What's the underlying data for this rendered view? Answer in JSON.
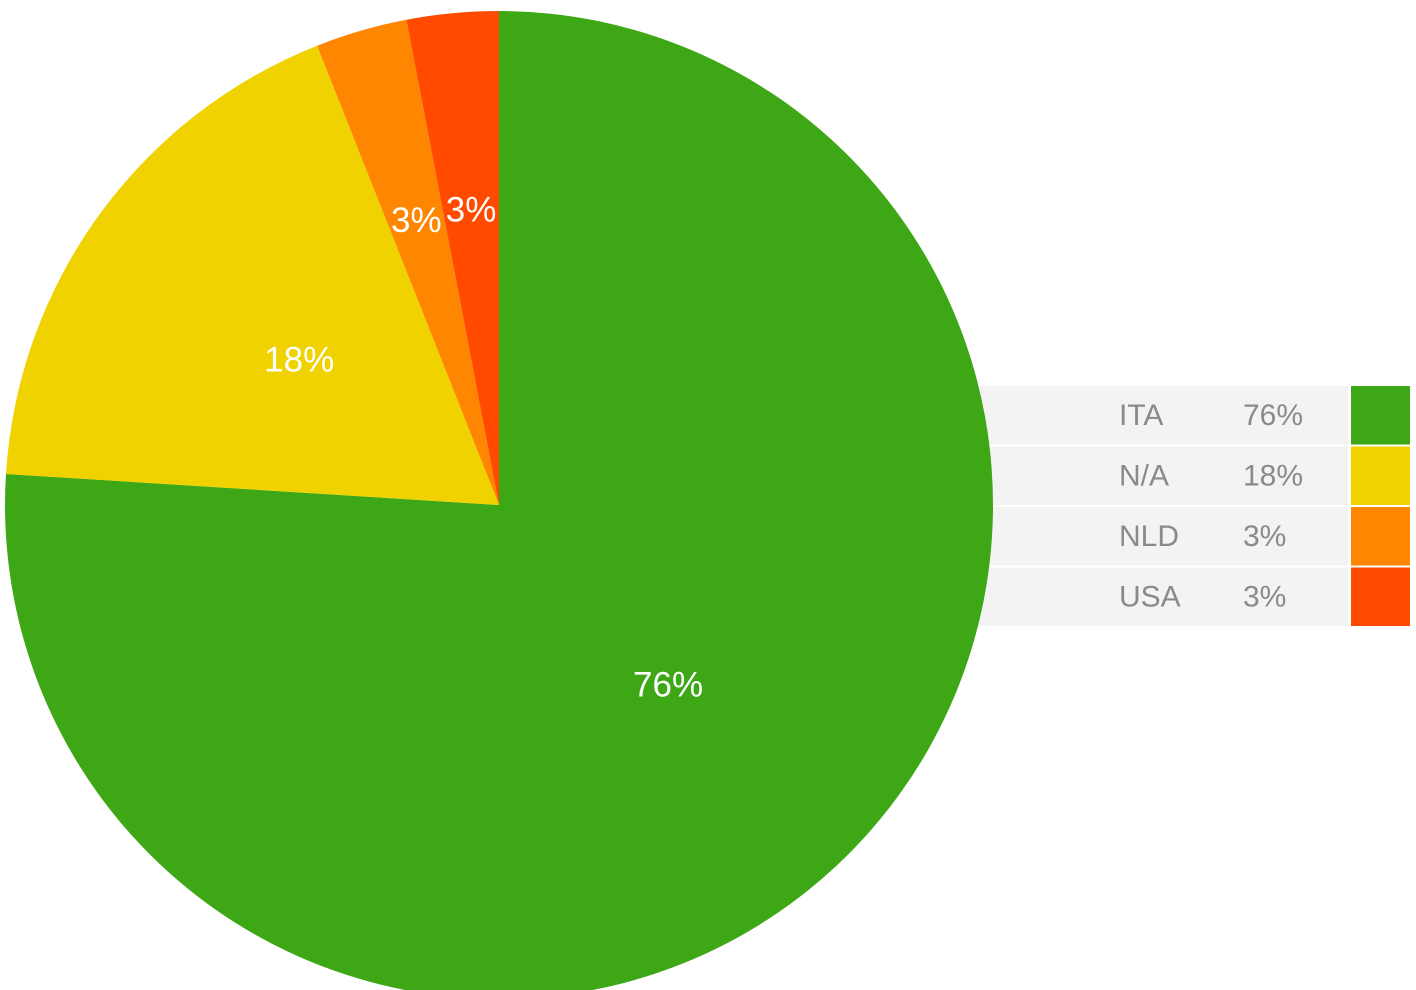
{
  "chart_data": {
    "type": "pie",
    "categories": [
      "ITA",
      "N/A",
      "NLD",
      "USA"
    ],
    "values": [
      76,
      18,
      3,
      3
    ],
    "value_labels": [
      "76%",
      "18%",
      "3%",
      "3%"
    ],
    "colors": [
      "#3ea716",
      "#efd200",
      "#ff8600",
      "#ff4a00"
    ],
    "legend_position": "right",
    "start_angle_deg": 0,
    "direction": "clockwise"
  }
}
